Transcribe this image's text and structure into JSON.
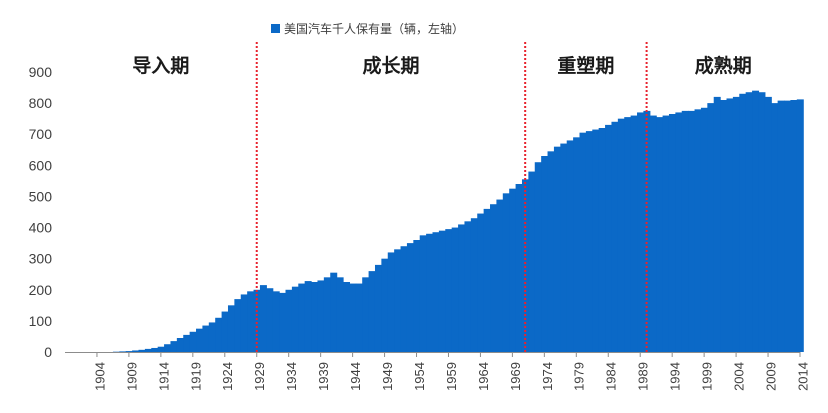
{
  "chart_data": {
    "type": "area",
    "legend": {
      "label": "美国汽车千人保有量（辆，左轴）",
      "position": "top-center"
    },
    "color": "#0b69c7",
    "divider_color": "#e8232d",
    "ylim": [
      0,
      900
    ],
    "yticks": [
      0,
      100,
      200,
      300,
      400,
      500,
      600,
      700,
      800,
      900
    ],
    "xlim": [
      1899,
      2014
    ],
    "xticks": [
      1904,
      1909,
      1914,
      1919,
      1924,
      1929,
      1934,
      1939,
      1944,
      1949,
      1954,
      1959,
      1964,
      1969,
      1974,
      1979,
      1984,
      1989,
      1994,
      1999,
      2004,
      2009,
      2014
    ],
    "phases": [
      {
        "label": "导入期",
        "start": 1899,
        "end": 1929
      },
      {
        "label": "成长期",
        "start": 1929,
        "end": 1971
      },
      {
        "label": "重塑期",
        "start": 1971,
        "end": 1990
      },
      {
        "label": "成熟期",
        "start": 1990,
        "end": 2014
      }
    ],
    "dividers": [
      1929,
      1971,
      1990
    ],
    "x": [
      1899,
      1900,
      1901,
      1902,
      1903,
      1904,
      1905,
      1906,
      1907,
      1908,
      1909,
      1910,
      1911,
      1912,
      1913,
      1914,
      1915,
      1916,
      1917,
      1918,
      1919,
      1920,
      1921,
      1922,
      1923,
      1924,
      1925,
      1926,
      1927,
      1928,
      1929,
      1930,
      1931,
      1932,
      1933,
      1934,
      1935,
      1936,
      1937,
      1938,
      1939,
      1940,
      1941,
      1942,
      1943,
      1944,
      1945,
      1946,
      1947,
      1948,
      1949,
      1950,
      1951,
      1952,
      1953,
      1954,
      1955,
      1956,
      1957,
      1958,
      1959,
      1960,
      1961,
      1962,
      1963,
      1964,
      1965,
      1966,
      1967,
      1968,
      1969,
      1970,
      1971,
      1972,
      1973,
      1974,
      1975,
      1976,
      1977,
      1978,
      1979,
      1980,
      1981,
      1982,
      1983,
      1984,
      1985,
      1986,
      1987,
      1988,
      1989,
      1990,
      1991,
      1992,
      1993,
      1994,
      1995,
      1996,
      1997,
      1998,
      1999,
      2000,
      2001,
      2002,
      2003,
      2004,
      2005,
      2006,
      2007,
      2008,
      2009,
      2010,
      2011,
      2012,
      2013,
      2014
    ],
    "values": [
      0,
      0,
      0,
      0,
      0,
      0,
      0,
      0,
      1,
      2,
      3,
      5,
      7,
      10,
      13,
      17,
      25,
      35,
      45,
      55,
      65,
      75,
      85,
      95,
      110,
      130,
      150,
      170,
      185,
      195,
      200,
      215,
      205,
      195,
      190,
      200,
      210,
      220,
      228,
      225,
      230,
      240,
      255,
      240,
      225,
      220,
      220,
      240,
      260,
      280,
      300,
      320,
      330,
      340,
      350,
      360,
      375,
      380,
      385,
      390,
      395,
      400,
      410,
      420,
      430,
      445,
      460,
      475,
      490,
      510,
      525,
      540,
      555,
      580,
      610,
      630,
      645,
      660,
      670,
      680,
      690,
      705,
      710,
      715,
      720,
      730,
      740,
      750,
      755,
      760,
      770,
      775,
      760,
      755,
      760,
      765,
      770,
      775,
      775,
      780,
      785,
      800,
      820,
      810,
      815,
      820,
      830,
      835,
      840,
      835,
      820,
      800,
      808,
      808,
      810,
      812
    ]
  }
}
